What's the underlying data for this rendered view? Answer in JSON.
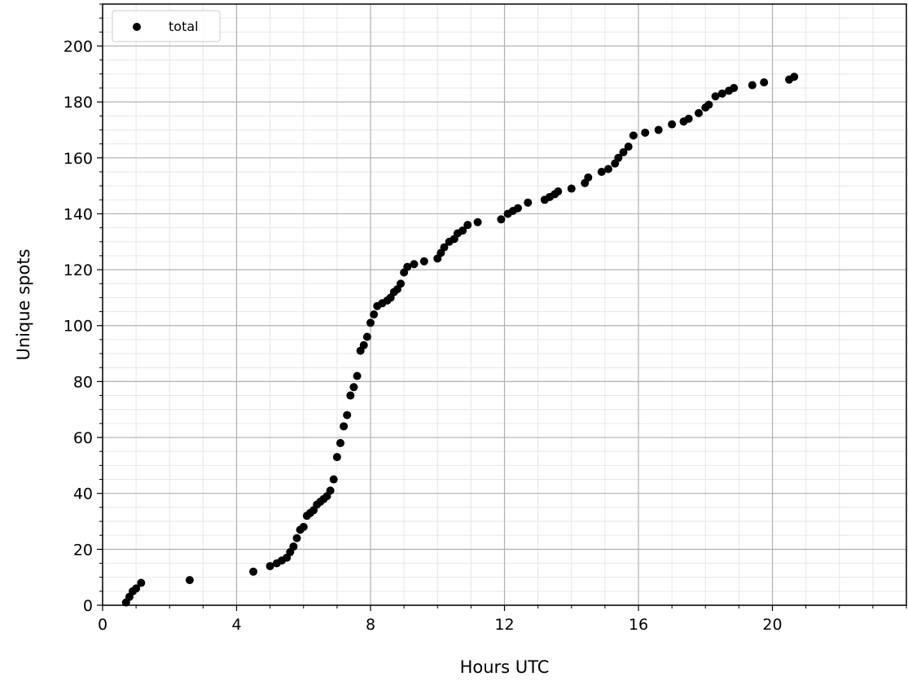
{
  "chart_data": {
    "type": "scatter",
    "xlabel": "Hours UTC",
    "ylabel": "Unique spots",
    "xlim": [
      0,
      24
    ],
    "ylim": [
      0,
      215
    ],
    "x_ticks": [
      0,
      4,
      8,
      12,
      16,
      20
    ],
    "y_ticks": [
      0,
      20,
      40,
      60,
      80,
      100,
      120,
      140,
      160,
      180,
      200
    ],
    "x_minor_step": 1,
    "y_minor_step": 5,
    "grid": true,
    "legend_position": "top-left",
    "color": "#000000",
    "series": [
      {
        "name": "total",
        "points": [
          [
            0.7,
            1
          ],
          [
            0.8,
            3
          ],
          [
            0.9,
            5
          ],
          [
            1.0,
            6
          ],
          [
            1.15,
            8
          ],
          [
            2.6,
            9
          ],
          [
            4.5,
            12
          ],
          [
            5.0,
            14
          ],
          [
            5.2,
            15
          ],
          [
            5.35,
            16
          ],
          [
            5.5,
            17
          ],
          [
            5.6,
            19
          ],
          [
            5.7,
            21
          ],
          [
            5.8,
            24
          ],
          [
            5.9,
            27
          ],
          [
            6.0,
            28
          ],
          [
            6.1,
            32
          ],
          [
            6.2,
            33
          ],
          [
            6.3,
            34
          ],
          [
            6.4,
            36
          ],
          [
            6.5,
            37
          ],
          [
            6.6,
            38
          ],
          [
            6.7,
            39
          ],
          [
            6.8,
            41
          ],
          [
            6.9,
            45
          ],
          [
            7.0,
            53
          ],
          [
            7.1,
            58
          ],
          [
            7.2,
            64
          ],
          [
            7.3,
            68
          ],
          [
            7.4,
            75
          ],
          [
            7.5,
            78
          ],
          [
            7.6,
            82
          ],
          [
            7.7,
            91
          ],
          [
            7.8,
            93
          ],
          [
            7.9,
            96
          ],
          [
            8.0,
            101
          ],
          [
            8.1,
            104
          ],
          [
            8.2,
            107
          ],
          [
            8.35,
            108
          ],
          [
            8.5,
            109
          ],
          [
            8.6,
            110
          ],
          [
            8.7,
            112
          ],
          [
            8.8,
            113
          ],
          [
            8.9,
            115
          ],
          [
            9.0,
            119
          ],
          [
            9.1,
            121
          ],
          [
            9.3,
            122
          ],
          [
            9.6,
            123
          ],
          [
            10.0,
            124
          ],
          [
            10.1,
            126
          ],
          [
            10.2,
            128
          ],
          [
            10.35,
            130
          ],
          [
            10.5,
            131
          ],
          [
            10.6,
            133
          ],
          [
            10.75,
            134
          ],
          [
            10.9,
            136
          ],
          [
            11.2,
            137
          ],
          [
            11.9,
            138
          ],
          [
            12.1,
            140
          ],
          [
            12.25,
            141
          ],
          [
            12.4,
            142
          ],
          [
            12.7,
            144
          ],
          [
            13.2,
            145
          ],
          [
            13.35,
            146
          ],
          [
            13.5,
            147
          ],
          [
            13.6,
            148
          ],
          [
            14.0,
            149
          ],
          [
            14.4,
            151
          ],
          [
            14.5,
            153
          ],
          [
            14.9,
            155
          ],
          [
            15.1,
            156
          ],
          [
            15.3,
            158
          ],
          [
            15.4,
            160
          ],
          [
            15.55,
            162
          ],
          [
            15.7,
            164
          ],
          [
            15.85,
            168
          ],
          [
            16.2,
            169
          ],
          [
            16.6,
            170
          ],
          [
            17.0,
            172
          ],
          [
            17.35,
            173
          ],
          [
            17.5,
            174
          ],
          [
            17.8,
            176
          ],
          [
            18.0,
            178
          ],
          [
            18.1,
            179
          ],
          [
            18.3,
            182
          ],
          [
            18.5,
            183
          ],
          [
            18.7,
            184
          ],
          [
            18.85,
            185
          ],
          [
            19.4,
            186
          ],
          [
            19.75,
            187
          ],
          [
            20.5,
            188
          ],
          [
            20.65,
            189
          ]
        ]
      }
    ]
  }
}
